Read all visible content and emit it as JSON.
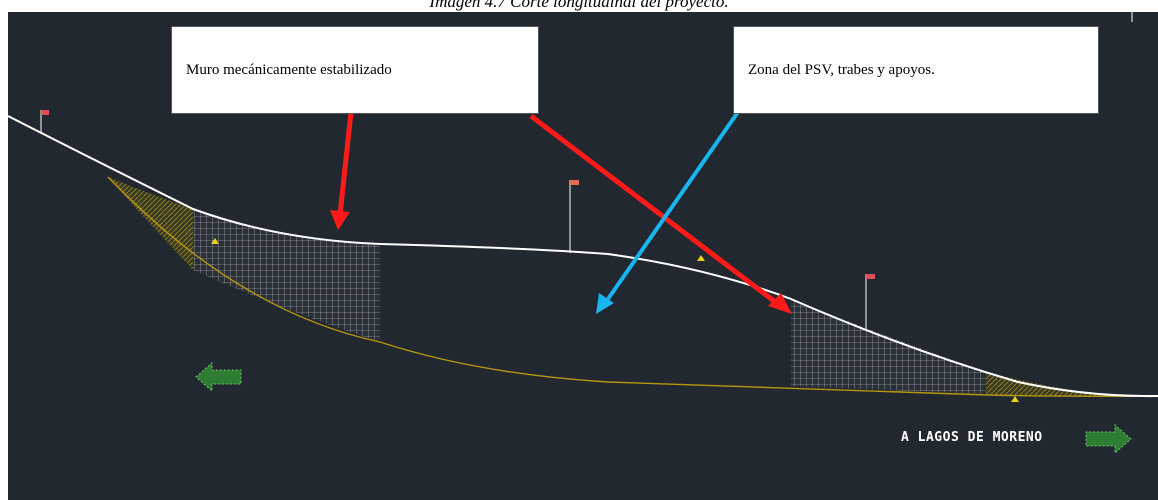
{
  "caption": "Imagen 4.7 Corte longitudinal del proyecto.",
  "callouts": {
    "muro": "Muro mecánicamente estabilizado",
    "zona": "Zona del PSV, trabes y apoyos."
  },
  "direction_label": "A LAGOS DE MORENO",
  "colors": {
    "background": "#212830",
    "profile_line": "#ffffff",
    "terrain_line": "#b8960f",
    "arrow_red": "#ff1a1a",
    "arrow_blue": "#19b5f0",
    "direction_arrow": "#2e7d32",
    "flag": "#e05050"
  }
}
